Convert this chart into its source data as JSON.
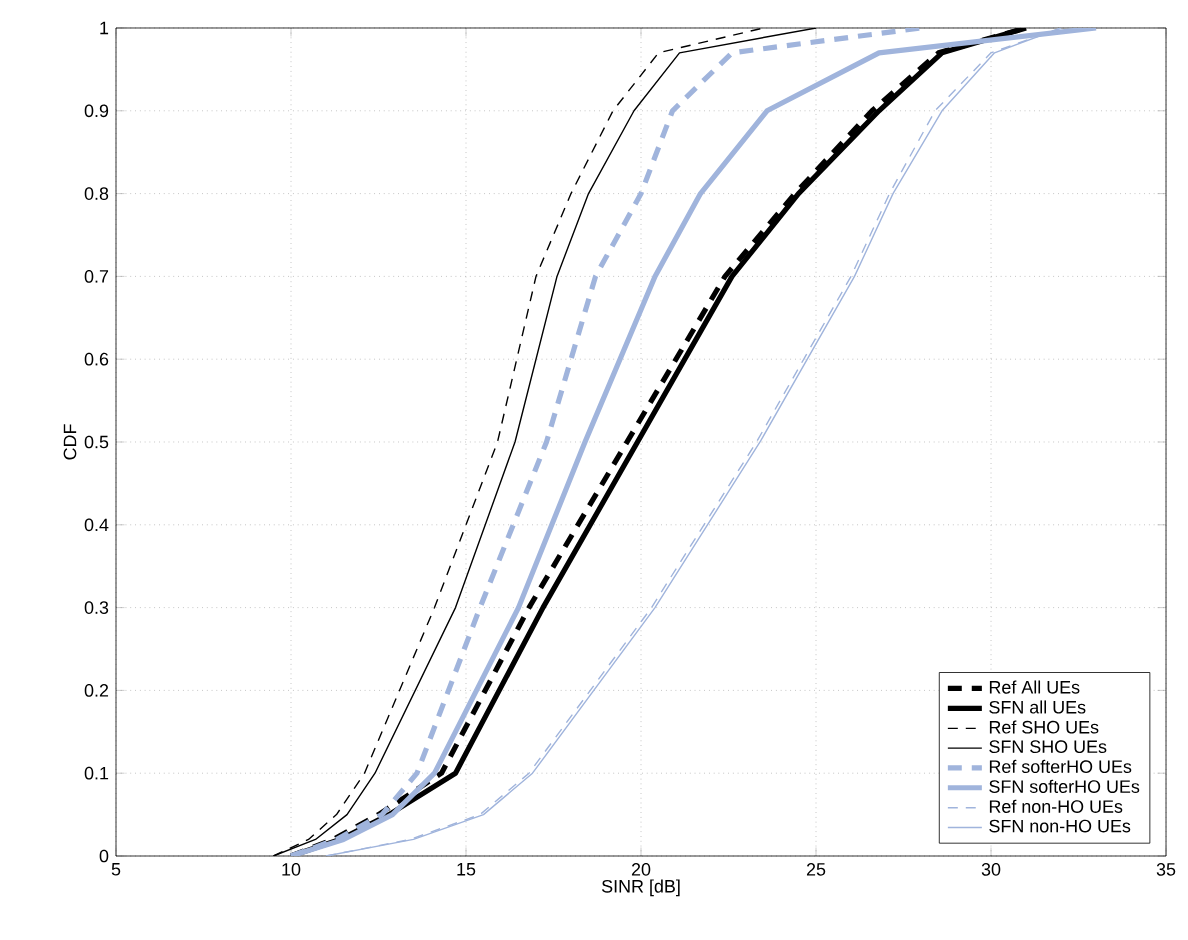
{
  "chart_data": {
    "type": "line",
    "xlabel": "SINR [dB]",
    "ylabel": "CDF",
    "xlim": [
      5,
      35
    ],
    "xticks": [
      5,
      10,
      15,
      20,
      25,
      30,
      35
    ],
    "ylim": [
      0,
      1
    ],
    "yticks": [
      0,
      0.1,
      0.2,
      0.3,
      0.4,
      0.5,
      0.6,
      0.7,
      0.8,
      0.9,
      1
    ],
    "grid": true,
    "legend": "bottom right",
    "marker": "none",
    "series": [
      {
        "name": "Ref All UEs",
        "color": "#000000",
        "line_style": "dashed",
        "x": [
          10,
          11.2,
          12.5,
          14.3,
          16.8,
          19.6,
          22.4,
          24.4,
          26.6,
          28.5,
          31
        ],
        "values": [
          0,
          0.02,
          0.05,
          0.1,
          0.3,
          0.5,
          0.7,
          0.8,
          0.9,
          0.97,
          1
        ]
      },
      {
        "name": "SFN all UEs",
        "color": "#000000",
        "line_style": "solid",
        "x": [
          10,
          11.4,
          12.8,
          14.7,
          17.2,
          19.9,
          22.6,
          24.5,
          26.8,
          28.6,
          31
        ],
        "values": [
          0,
          0.02,
          0.05,
          0.1,
          0.3,
          0.5,
          0.7,
          0.8,
          0.9,
          0.97,
          1
        ]
      },
      {
        "name": "Ref SHO UEs",
        "color": "#000000",
        "line_style": "dashed",
        "x": [
          9.5,
          10.5,
          11.3,
          12.1,
          14.1,
          15.9,
          17.0,
          18.0,
          19.2,
          20.5,
          23.5
        ],
        "values": [
          0,
          0.02,
          0.05,
          0.1,
          0.3,
          0.5,
          0.7,
          0.8,
          0.9,
          0.97,
          1
        ]
      },
      {
        "name": "SFN SHO UEs",
        "color": "#000000",
        "line_style": "solid",
        "x": [
          9.5,
          10.7,
          11.6,
          12.4,
          14.7,
          16.4,
          17.6,
          18.5,
          19.8,
          21.1,
          25
        ],
        "values": [
          0,
          0.02,
          0.05,
          0.1,
          0.3,
          0.5,
          0.7,
          0.8,
          0.9,
          0.97,
          1
        ]
      },
      {
        "name": "Ref softerHO UEs",
        "color": "#a0b4dc",
        "line_style": "dashed",
        "x": [
          10,
          11.3,
          12.6,
          13.6,
          15.4,
          17.3,
          18.7,
          20.0,
          20.9,
          22.6,
          28
        ],
        "values": [
          0,
          0.02,
          0.05,
          0.1,
          0.3,
          0.5,
          0.7,
          0.8,
          0.9,
          0.97,
          1
        ]
      },
      {
        "name": "SFN softerHO UEs",
        "color": "#a0b4dc",
        "line_style": "solid",
        "x": [
          10,
          11.5,
          12.9,
          14.1,
          16.5,
          18.4,
          20.4,
          21.7,
          23.6,
          26.8,
          33
        ],
        "values": [
          0,
          0.02,
          0.05,
          0.1,
          0.3,
          0.5,
          0.7,
          0.8,
          0.9,
          0.97,
          1
        ]
      },
      {
        "name": "Ref non-HO UEs",
        "color": "#a0b4dc",
        "line_style": "dashed",
        "x": [
          11,
          13.4,
          15.4,
          16.8,
          20.3,
          23.3,
          26.0,
          27.1,
          28.4,
          30.0,
          32
        ],
        "values": [
          0,
          0.02,
          0.05,
          0.1,
          0.3,
          0.5,
          0.7,
          0.8,
          0.9,
          0.97,
          1
        ]
      },
      {
        "name": "SFN non-HO UEs",
        "color": "#a0b4dc",
        "line_style": "solid",
        "x": [
          11,
          13.5,
          15.5,
          16.9,
          20.4,
          23.4,
          26.1,
          27.2,
          28.6,
          30.1,
          32
        ],
        "values": [
          0,
          0.02,
          0.05,
          0.1,
          0.3,
          0.5,
          0.7,
          0.8,
          0.9,
          0.97,
          1
        ]
      }
    ]
  }
}
